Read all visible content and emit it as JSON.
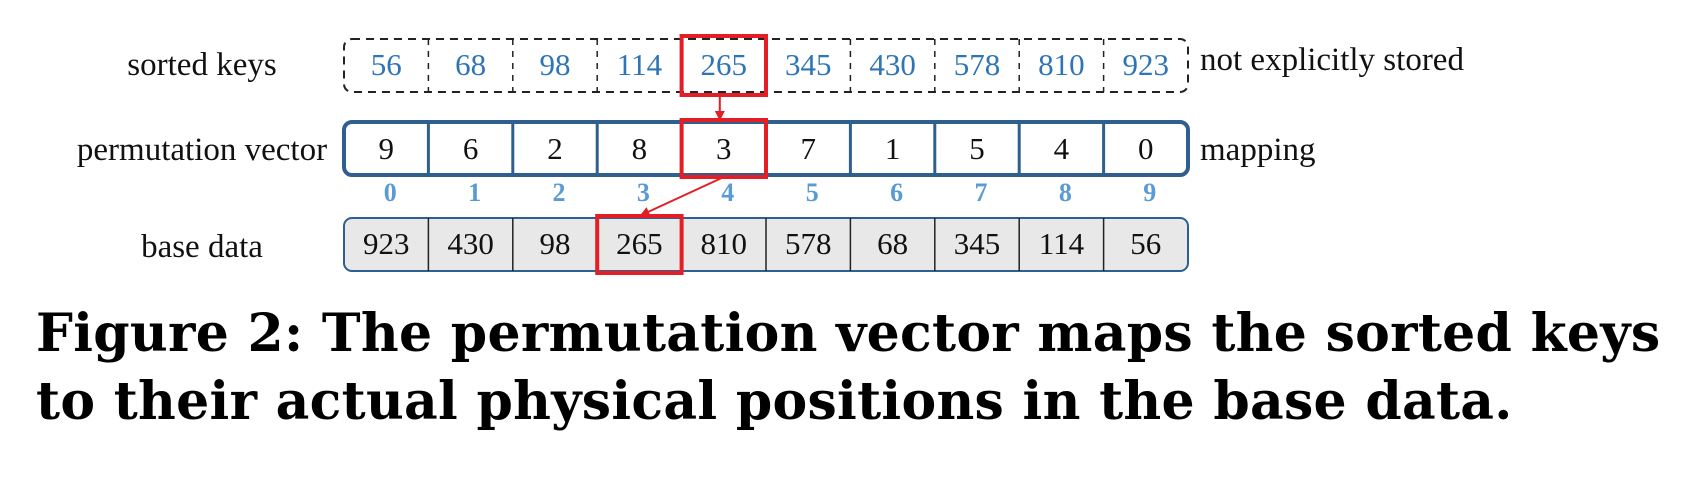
{
  "labels": {
    "sorted_keys": "sorted keys",
    "permutation_vector": "permutation vector",
    "base_data": "base data",
    "not_stored": "not explicitly stored",
    "mapping": "mapping"
  },
  "sorted_keys": [
    "56",
    "68",
    "98",
    "114",
    "265",
    "345",
    "430",
    "578",
    "810",
    "923"
  ],
  "permutation_vector": [
    "9",
    "6",
    "2",
    "8",
    "3",
    "7",
    "1",
    "5",
    "4",
    "0"
  ],
  "indices": [
    "0",
    "1",
    "2",
    "3",
    "4",
    "5",
    "6",
    "7",
    "8",
    "9"
  ],
  "base_data": [
    "923",
    "430",
    "98",
    "265",
    "810",
    "578",
    "68",
    "345",
    "114",
    "56"
  ],
  "highlight": {
    "sorted_key_index": 4,
    "permutation_index": 4,
    "base_data_index": 3
  },
  "caption": "Figure 2: The permutation vector maps the sorted keys to their actual physical positions in the base data.",
  "colors": {
    "key_blue": "#2e75b6",
    "index_blue": "#5b9bd5",
    "border_blue": "#2f5f8f",
    "highlight_red": "#e31e24",
    "base_fill": "#e8e8e8"
  }
}
